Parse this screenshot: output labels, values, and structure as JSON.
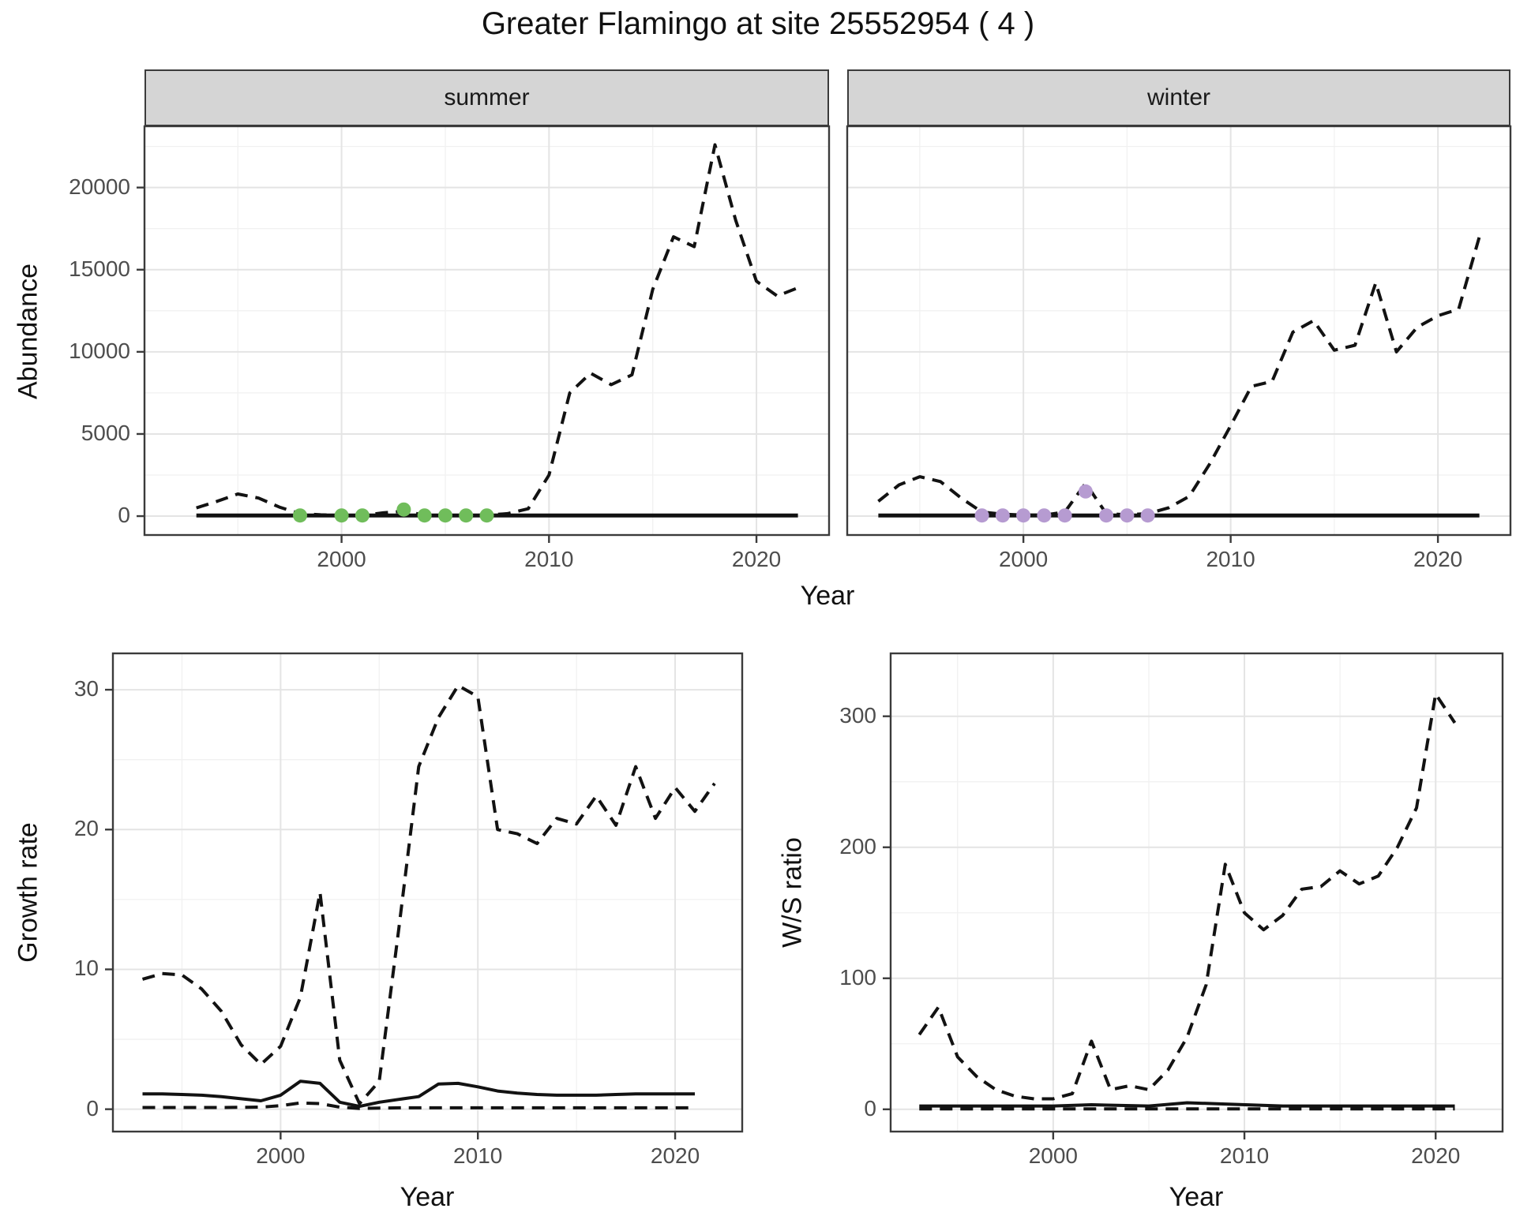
{
  "title": "Greater Flamingo at site 25552954 ( 4 )",
  "axes": {
    "top_ylabel": "Abundance",
    "top_xlabel": "Year",
    "growth_ylabel": "Growth rate",
    "growth_xlabel": "Year",
    "ws_ylabel": "W/S ratio",
    "ws_xlabel": "Year"
  },
  "facets": {
    "summer": "summer",
    "winter": "winter"
  },
  "colors": {
    "line": "#121212",
    "summer_points": "#70bd5b",
    "winter_points": "#b69bd1",
    "strip_bg": "#d5d5d5",
    "grid_major": "#e4e4e4",
    "grid_minor": "#f1f1f1",
    "tick_text": "#4d4d4d",
    "panel_border": "#3b3b3b"
  },
  "chart_data": [
    {
      "key": "summer",
      "type": "line",
      "facet_label": "summer",
      "x_domain": [
        1990.5,
        2023.5
      ],
      "y_domain": [
        -1150,
        23730
      ],
      "x_ticks": [
        2000,
        2010,
        2020
      ],
      "x_minor": [
        1995,
        2005,
        2015
      ],
      "y_ticks": [
        0,
        5000,
        10000,
        15000,
        20000
      ],
      "y_minor": [
        2500,
        7500,
        12500,
        17500,
        22500
      ],
      "series": [
        {
          "name": "observed-count-dashed",
          "style": "dashed",
          "width": 4,
          "points": [
            [
              1993,
              500
            ],
            [
              1994,
              900
            ],
            [
              1995,
              1350
            ],
            [
              1996,
              1100
            ],
            [
              1997,
              550
            ],
            [
              1998,
              150
            ],
            [
              1999,
              80
            ],
            [
              2000,
              40
            ],
            [
              2001,
              40
            ],
            [
              2002,
              200
            ],
            [
              2003,
              300
            ],
            [
              2004,
              60
            ],
            [
              2005,
              40
            ],
            [
              2006,
              40
            ],
            [
              2007,
              60
            ],
            [
              2008,
              150
            ],
            [
              2009,
              450
            ],
            [
              2010,
              2500
            ],
            [
              2011,
              7500
            ],
            [
              2012,
              8700
            ],
            [
              2013,
              8000
            ],
            [
              2014,
              8600
            ],
            [
              2015,
              13800
            ],
            [
              2016,
              17000
            ],
            [
              2017,
              16400
            ],
            [
              2018,
              22600
            ],
            [
              2019,
              18000
            ],
            [
              2020,
              14300
            ],
            [
              2021,
              13400
            ],
            [
              2022,
              13900
            ]
          ]
        },
        {
          "name": "trend-solid",
          "style": "solid",
          "width": 5,
          "points": [
            [
              1993,
              40
            ],
            [
              2000,
              40
            ],
            [
              2010,
              40
            ],
            [
              2022,
              40
            ]
          ]
        }
      ],
      "markers": {
        "name": "summer-survey-points",
        "color": "#70bd5b",
        "radius": 9,
        "points": [
          [
            1998,
            40
          ],
          [
            2000,
            40
          ],
          [
            2001,
            40
          ],
          [
            2003,
            400
          ],
          [
            2004,
            40
          ],
          [
            2005,
            40
          ],
          [
            2006,
            40
          ],
          [
            2007,
            40
          ]
        ]
      }
    },
    {
      "key": "winter",
      "type": "line",
      "facet_label": "winter",
      "x_domain": [
        1991.5,
        2023.5
      ],
      "y_domain": [
        -1150,
        23730
      ],
      "x_ticks": [
        2000,
        2010,
        2020
      ],
      "x_minor": [
        1995,
        2005,
        2015
      ],
      "y_ticks": [
        0,
        5000,
        10000,
        15000,
        20000
      ],
      "y_minor": [
        2500,
        7500,
        12500,
        17500,
        22500
      ],
      "series": [
        {
          "name": "observed-count-dashed",
          "style": "dashed",
          "width": 4,
          "points": [
            [
              1993,
              900
            ],
            [
              1994,
              1900
            ],
            [
              1995,
              2400
            ],
            [
              1996,
              2100
            ],
            [
              1997,
              1100
            ],
            [
              1998,
              250
            ],
            [
              1999,
              120
            ],
            [
              2000,
              60
            ],
            [
              2001,
              60
            ],
            [
              2002,
              250
            ],
            [
              2003,
              2000
            ],
            [
              2004,
              150
            ],
            [
              2005,
              80
            ],
            [
              2006,
              150
            ],
            [
              2007,
              500
            ],
            [
              2008,
              1200
            ],
            [
              2009,
              3200
            ],
            [
              2010,
              5500
            ],
            [
              2011,
              7900
            ],
            [
              2012,
              8200
            ],
            [
              2013,
              11200
            ],
            [
              2014,
              11900
            ],
            [
              2015,
              10100
            ],
            [
              2016,
              10400
            ],
            [
              2017,
              14200
            ],
            [
              2018,
              10000
            ],
            [
              2019,
              11500
            ],
            [
              2020,
              12200
            ],
            [
              2021,
              12600
            ],
            [
              2022,
              17000
            ]
          ]
        },
        {
          "name": "trend-solid",
          "style": "solid",
          "width": 5,
          "points": [
            [
              1993,
              40
            ],
            [
              2000,
              40
            ],
            [
              2010,
              40
            ],
            [
              2022,
              40
            ]
          ]
        }
      ],
      "markers": {
        "name": "winter-survey-points",
        "color": "#b69bd1",
        "radius": 9,
        "points": [
          [
            1998,
            40
          ],
          [
            1999,
            40
          ],
          [
            2000,
            40
          ],
          [
            2001,
            40
          ],
          [
            2002,
            40
          ],
          [
            2003,
            1500
          ],
          [
            2004,
            40
          ],
          [
            2005,
            40
          ],
          [
            2006,
            40
          ]
        ]
      }
    },
    {
      "key": "growth",
      "type": "line",
      "facet_label": "",
      "x_domain": [
        1991.5,
        2023.4
      ],
      "y_domain": [
        -1.6,
        32.6
      ],
      "x_ticks": [
        2000,
        2010,
        2020
      ],
      "x_minor": [
        1995,
        2005,
        2015
      ],
      "y_ticks": [
        0,
        10,
        20,
        30
      ],
      "y_minor": [
        5,
        15,
        25
      ],
      "series": [
        {
          "name": "upper-ci-dashed",
          "style": "dashed",
          "width": 4,
          "points": [
            [
              1993,
              9.3
            ],
            [
              1994,
              9.7
            ],
            [
              1995,
              9.6
            ],
            [
              1996,
              8.6
            ],
            [
              1997,
              7.0
            ],
            [
              1998,
              4.6
            ],
            [
              1999,
              3.2
            ],
            [
              2000,
              4.5
            ],
            [
              2001,
              8.0
            ],
            [
              2002,
              15.5
            ],
            [
              2003,
              3.5
            ],
            [
              2004,
              0.4
            ],
            [
              2005,
              2.0
            ],
            [
              2006,
              13.0
            ],
            [
              2007,
              24.5
            ],
            [
              2008,
              28.0
            ],
            [
              2009,
              30.3
            ],
            [
              2010,
              29.5
            ],
            [
              2011,
              20.0
            ],
            [
              2012,
              19.7
            ],
            [
              2013,
              19.0
            ],
            [
              2014,
              20.8
            ],
            [
              2015,
              20.4
            ],
            [
              2016,
              22.4
            ],
            [
              2017,
              20.3
            ],
            [
              2018,
              24.5
            ],
            [
              2019,
              20.8
            ],
            [
              2020,
              23.0
            ],
            [
              2021,
              21.3
            ],
            [
              2022,
              23.3
            ]
          ]
        },
        {
          "name": "growth-rate-solid",
          "style": "solid",
          "width": 4,
          "points": [
            [
              1993,
              1.1
            ],
            [
              1994,
              1.1
            ],
            [
              1995,
              1.05
            ],
            [
              1996,
              1.0
            ],
            [
              1997,
              0.9
            ],
            [
              1998,
              0.75
            ],
            [
              1999,
              0.6
            ],
            [
              2000,
              1.0
            ],
            [
              2001,
              2.0
            ],
            [
              2002,
              1.85
            ],
            [
              2003,
              0.5
            ],
            [
              2004,
              0.2
            ],
            [
              2005,
              0.5
            ],
            [
              2006,
              0.7
            ],
            [
              2007,
              0.9
            ],
            [
              2008,
              1.8
            ],
            [
              2009,
              1.85
            ],
            [
              2010,
              1.6
            ],
            [
              2011,
              1.3
            ],
            [
              2012,
              1.15
            ],
            [
              2013,
              1.05
            ],
            [
              2014,
              1.0
            ],
            [
              2015,
              1.0
            ],
            [
              2016,
              1.0
            ],
            [
              2017,
              1.05
            ],
            [
              2018,
              1.1
            ],
            [
              2019,
              1.1
            ],
            [
              2020,
              1.1
            ],
            [
              2021,
              1.1
            ]
          ]
        },
        {
          "name": "lower-ci-dashed",
          "style": "dashed",
          "width": 4,
          "points": [
            [
              1993,
              0.12
            ],
            [
              1995,
              0.12
            ],
            [
              1997,
              0.12
            ],
            [
              1999,
              0.15
            ],
            [
              2000,
              0.25
            ],
            [
              2001,
              0.45
            ],
            [
              2002,
              0.4
            ],
            [
              2003,
              0.15
            ],
            [
              2004,
              0.05
            ],
            [
              2005,
              0.08
            ],
            [
              2006,
              0.1
            ],
            [
              2008,
              0.1
            ],
            [
              2010,
              0.1
            ],
            [
              2012,
              0.1
            ],
            [
              2014,
              0.1
            ],
            [
              2016,
              0.1
            ],
            [
              2018,
              0.1
            ],
            [
              2020,
              0.1
            ],
            [
              2021,
              0.1
            ]
          ]
        }
      ]
    },
    {
      "key": "ws",
      "type": "line",
      "facet_label": "",
      "x_domain": [
        1991.5,
        2023.5
      ],
      "y_domain": [
        -17,
        348
      ],
      "x_ticks": [
        2000,
        2010,
        2020
      ],
      "x_minor": [
        1995,
        2005,
        2015
      ],
      "y_ticks": [
        0,
        100,
        200,
        300
      ],
      "y_minor": [
        50,
        150,
        250
      ],
      "series": [
        {
          "name": "ws-ratio-dashed",
          "style": "dashed",
          "width": 4,
          "points": [
            [
              1993,
              57
            ],
            [
              1994,
              78
            ],
            [
              1995,
              40
            ],
            [
              1996,
              25
            ],
            [
              1997,
              15
            ],
            [
              1998,
              10
            ],
            [
              1999,
              8
            ],
            [
              2000,
              8
            ],
            [
              2001,
              12
            ],
            [
              2002,
              52
            ],
            [
              2003,
              15
            ],
            [
              2004,
              18
            ],
            [
              2005,
              15
            ],
            [
              2006,
              30
            ],
            [
              2007,
              55
            ],
            [
              2008,
              95
            ],
            [
              2009,
              187
            ],
            [
              2010,
              150
            ],
            [
              2011,
              137
            ],
            [
              2012,
              148
            ],
            [
              2013,
              168
            ],
            [
              2014,
              170
            ],
            [
              2015,
              182
            ],
            [
              2016,
              172
            ],
            [
              2017,
              178
            ],
            [
              2018,
              200
            ],
            [
              2019,
              230
            ],
            [
              2020,
              317
            ],
            [
              2021,
              295
            ]
          ]
        },
        {
          "name": "ws-solid",
          "style": "solid",
          "width": 4,
          "points": [
            [
              1993,
              2.5
            ],
            [
              2000,
              2.5
            ],
            [
              2002,
              3.5
            ],
            [
              2005,
              2.5
            ],
            [
              2007,
              5
            ],
            [
              2009,
              4
            ],
            [
              2012,
              2.5
            ],
            [
              2021,
              2.5
            ]
          ]
        },
        {
          "name": "ws-lower-dashed",
          "style": "dashed",
          "width": 4,
          "points": [
            [
              1993,
              0.3
            ],
            [
              2000,
              0.3
            ],
            [
              2010,
              0.3
            ],
            [
              2021,
              0.3
            ]
          ]
        }
      ]
    }
  ]
}
